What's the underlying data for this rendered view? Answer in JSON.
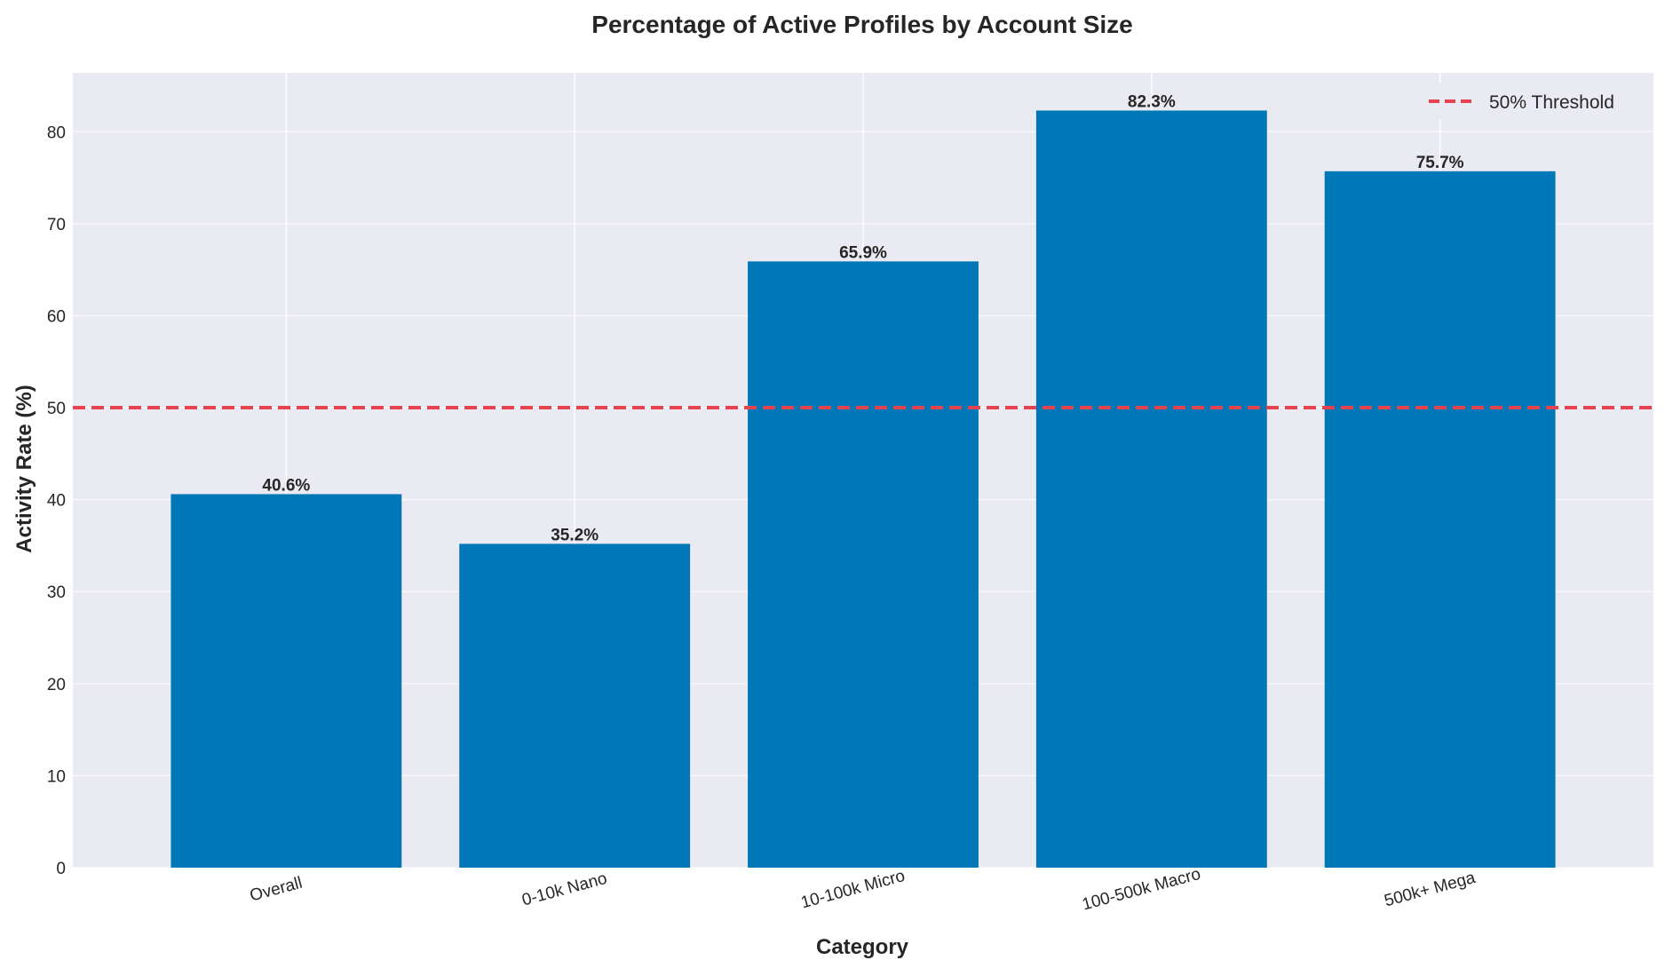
{
  "chart_data": {
    "type": "bar",
    "title": "Percentage of Active Profiles by Account Size",
    "xlabel": "Category",
    "ylabel": "Activity Rate (%)",
    "categories": [
      "Overall",
      "0-10k Nano",
      "10-100k Micro",
      "100-500k Macro",
      "500k+ Mega"
    ],
    "values": [
      40.6,
      35.2,
      65.9,
      82.3,
      75.7
    ],
    "value_labels": [
      "40.6%",
      "35.2%",
      "65.9%",
      "82.3%",
      "75.7%"
    ],
    "ylim": [
      0,
      86.4
    ],
    "yticks": [
      0,
      10,
      20,
      30,
      40,
      50,
      60,
      70,
      80
    ],
    "ytick_labels": [
      "0",
      "10",
      "20",
      "30",
      "40",
      "50",
      "60",
      "70",
      "80"
    ],
    "bar_color": "#0077b6",
    "threshold": {
      "value": 50,
      "label": "50% Threshold",
      "color": "#e5434f"
    },
    "grid": true,
    "legend_position": "top-right",
    "plot_background": "#eaeaf2"
  }
}
